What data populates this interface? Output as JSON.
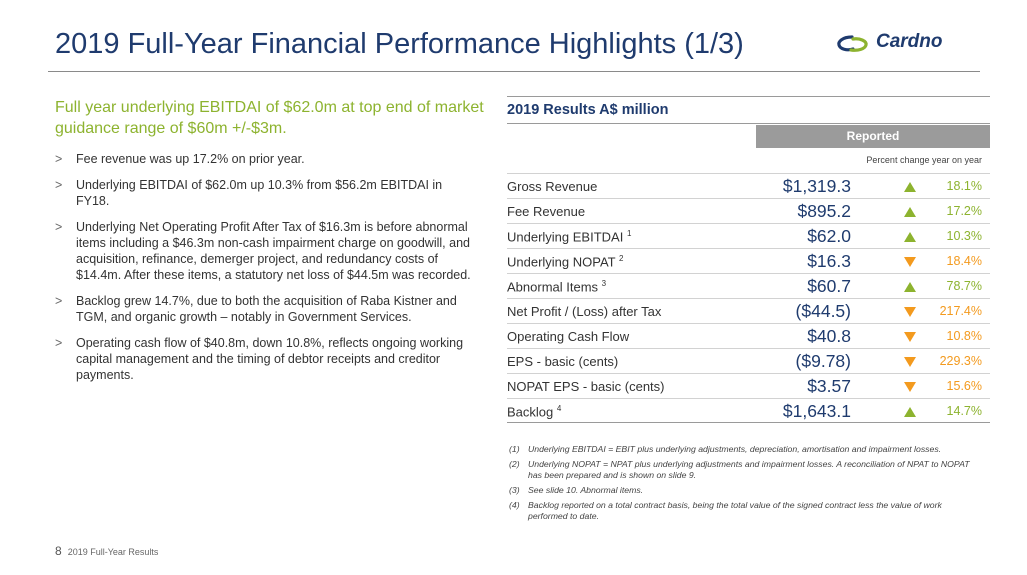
{
  "header": {
    "title": "2019 Full-Year Financial Performance Highlights (1/3)",
    "logo_text": "Cardno",
    "logo_mark": "cardno-swoosh-icon"
  },
  "colors": {
    "title": "#1f3b6e",
    "highlight": "#8db32f",
    "up": "#8db32f",
    "down": "#f39a1e",
    "reported_bar": "#9b9b9b"
  },
  "left": {
    "headline": "Full year underlying EBITDAI of $62.0m at top end of market guidance range of $60m +/-$3m.",
    "bullets": [
      "Fee revenue was up 17.2% on prior year.",
      "Underlying EBITDAI of $62.0m up 10.3% from $56.2m EBITDAI in FY18.",
      "Underlying Net Operating Profit After Tax of $16.3m is before abnormal items including a $46.3m non-cash impairment charge on goodwill, and acquisition, refinance, demerger project, and redundancy costs of $14.4m.   After these items, a statutory net loss of $44.5m was recorded.",
      "Backlog grew 14.7%, due to both the acquisition of Raba Kistner and TGM, and organic growth – notably in Government Services.",
      "Operating cash flow of $40.8m, down 10.8%, reflects ongoing working capital management and the timing of debtor receipts and creditor payments."
    ]
  },
  "table": {
    "title": "2019 Results A$ million",
    "reported_label": "Reported",
    "pct_note": "Percent change year on year",
    "rows": [
      {
        "label": "Gross Revenue",
        "sup": "",
        "value": "$1,319.3",
        "dir": "up",
        "pct": "18.1%"
      },
      {
        "label": "Fee Revenue",
        "sup": "",
        "value": "$895.2",
        "dir": "up",
        "pct": "17.2%"
      },
      {
        "label": "Underlying EBITDAI",
        "sup": "1",
        "value": "$62.0",
        "dir": "up",
        "pct": "10.3%"
      },
      {
        "label": "Underlying NOPAT",
        "sup": "2",
        "value": "$16.3",
        "dir": "down",
        "pct": "18.4%"
      },
      {
        "label": "Abnormal Items",
        "sup": "3",
        "value": "$60.7",
        "dir": "up",
        "pct": "78.7%"
      },
      {
        "label": "Net Profit / (Loss) after Tax",
        "sup": "",
        "value": "($44.5)",
        "dir": "down",
        "pct": "217.4%"
      },
      {
        "label": "Operating Cash Flow",
        "sup": "",
        "value": "$40.8",
        "dir": "down",
        "pct": "10.8%"
      },
      {
        "label": "EPS - basic (cents)",
        "sup": "",
        "value": "($9.78)",
        "dir": "down",
        "pct": "229.3%"
      },
      {
        "label": "NOPAT EPS - basic (cents)",
        "sup": "",
        "value": "$3.57",
        "dir": "down",
        "pct": "15.6%"
      },
      {
        "label": "Backlog",
        "sup": "4",
        "value": "$1,643.1",
        "dir": "up",
        "pct": "14.7%"
      }
    ]
  },
  "notes": [
    {
      "num": "(1)",
      "text": "Underlying EBITDAI = EBIT plus underlying adjustments, depreciation, amortisation and impairment losses."
    },
    {
      "num": "(2)",
      "text": "Underlying NOPAT = NPAT plus underlying adjustments and impairment losses. A reconciliation of NPAT to NOPAT has been prepared and is shown on slide 9."
    },
    {
      "num": "(3)",
      "text": "See slide 10. Abnormal items."
    },
    {
      "num": "(4)",
      "text": "Backlog reported on a total contract basis, being the total value of the signed contract less the value of work performed to date."
    }
  ],
  "footer": {
    "page_number": "8",
    "text": "2019 Full-Year Results"
  }
}
